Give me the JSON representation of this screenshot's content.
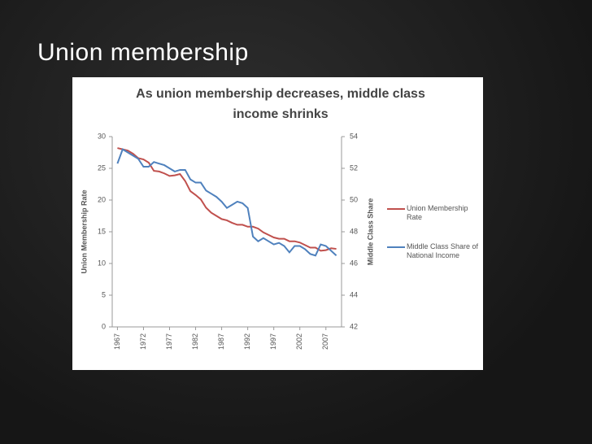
{
  "slide_title": "Union membership",
  "chart_data": {
    "type": "line",
    "title": "As union membership decreases, middle class income shrinks",
    "y_label": "Union Membership Rate",
    "y2_label": "Middle Class Share",
    "x": [
      1967,
      1968,
      1969,
      1970,
      1971,
      1972,
      1973,
      1974,
      1975,
      1976,
      1977,
      1978,
      1979,
      1980,
      1981,
      1982,
      1983,
      1984,
      1985,
      1986,
      1987,
      1988,
      1989,
      1990,
      1991,
      1992,
      1993,
      1994,
      1995,
      1996,
      1997,
      1998,
      1999,
      2000,
      2001,
      2002,
      2003,
      2004,
      2005,
      2006,
      2007,
      2008,
      2009
    ],
    "xlim": [
      1966,
      2010
    ],
    "xticks": [
      1967,
      1972,
      1977,
      1982,
      1987,
      1992,
      1997,
      2002,
      2007
    ],
    "ylim": [
      0,
      30
    ],
    "yticks": [
      0,
      5,
      10,
      15,
      20,
      25,
      30
    ],
    "y2lim": [
      42,
      54
    ],
    "y2ticks": [
      42,
      44,
      46,
      48,
      50,
      52,
      54
    ],
    "series": [
      {
        "name": "Union Membership Rate",
        "color": "#c0504d",
        "values": [
          28.2,
          28.0,
          27.8,
          27.3,
          26.6,
          26.4,
          25.9,
          24.6,
          24.5,
          24.2,
          23.8,
          23.9,
          24.1,
          23.0,
          21.4,
          20.8,
          20.1,
          18.8,
          18.0,
          17.5,
          17.0,
          16.8,
          16.4,
          16.1,
          16.1,
          15.8,
          15.8,
          15.5,
          14.9,
          14.5,
          14.1,
          13.9,
          13.9,
          13.5,
          13.5,
          13.3,
          12.9,
          12.5,
          12.5,
          12.0,
          12.1,
          12.4,
          12.3
        ]
      },
      {
        "name": "Middle Class Share of National Income",
        "color": "#4f81bd",
        "axis": "y2",
        "values": [
          52.3,
          53.2,
          53.0,
          52.8,
          52.6,
          52.1,
          52.1,
          52.4,
          52.3,
          52.2,
          52.0,
          51.8,
          51.9,
          51.9,
          51.3,
          51.1,
          51.1,
          50.6,
          50.4,
          50.2,
          49.9,
          49.5,
          49.7,
          49.9,
          49.8,
          49.5,
          47.7,
          47.4,
          47.6,
          47.4,
          47.2,
          47.3,
          47.1,
          46.7,
          47.1,
          47.1,
          46.9,
          46.6,
          46.5,
          47.2,
          47.1,
          46.8,
          46.5
        ]
      }
    ]
  }
}
